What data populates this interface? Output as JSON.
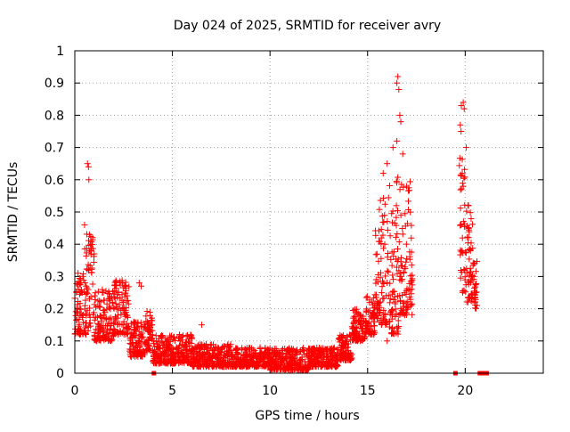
{
  "chart_data": {
    "type": "scatter",
    "title": "Day 024 of 2025, SRMTID for receiver avry",
    "xlabel": "GPS time / hours",
    "ylabel": "SRMTID / TECUs",
    "xlim": [
      0,
      24
    ],
    "ylim": [
      0,
      1
    ],
    "xticks": [
      0,
      5,
      10,
      15,
      20
    ],
    "yticks": [
      0,
      0.1,
      0.2,
      0.3,
      0.4,
      0.5,
      0.6,
      0.7,
      0.8,
      0.9,
      1
    ],
    "xtick_labels": [
      "0",
      "5",
      "10",
      "15",
      "20"
    ],
    "ytick_labels": [
      "0",
      "0.1",
      "0.2",
      "0.3",
      "0.4",
      "0.5",
      "0.6",
      "0.7",
      "0.8",
      "0.9",
      "1"
    ],
    "grid": true,
    "marker": "plus",
    "color": "#ff0000",
    "series": [
      {
        "name": "SRMTID",
        "segments": [
          {
            "x0": 0.0,
            "x1": 0.5,
            "y_min": 0.12,
            "y_max": 0.32
          },
          {
            "x0": 0.5,
            "x1": 1.0,
            "y_min": 0.12,
            "y_max": 0.45
          },
          {
            "x0": 1.0,
            "x1": 2.0,
            "y_min": 0.1,
            "y_max": 0.26
          },
          {
            "x0": 2.0,
            "x1": 2.8,
            "y_min": 0.12,
            "y_max": 0.29
          },
          {
            "x0": 2.8,
            "x1": 3.6,
            "y_min": 0.05,
            "y_max": 0.16
          },
          {
            "x0": 3.6,
            "x1": 4.0,
            "y_min": 0.07,
            "y_max": 0.2
          },
          {
            "x0": 4.0,
            "x1": 6.0,
            "y_min": 0.03,
            "y_max": 0.12
          },
          {
            "x0": 6.0,
            "x1": 8.0,
            "y_min": 0.02,
            "y_max": 0.09
          },
          {
            "x0": 8.0,
            "x1": 10.0,
            "y_min": 0.02,
            "y_max": 0.08
          },
          {
            "x0": 10.0,
            "x1": 12.0,
            "y_min": 0.01,
            "y_max": 0.08
          },
          {
            "x0": 12.0,
            "x1": 13.5,
            "y_min": 0.02,
            "y_max": 0.08
          },
          {
            "x0": 13.5,
            "x1": 14.2,
            "y_min": 0.04,
            "y_max": 0.12
          },
          {
            "x0": 14.2,
            "x1": 14.9,
            "y_min": 0.1,
            "y_max": 0.2
          },
          {
            "x0": 14.9,
            "x1": 15.4,
            "y_min": 0.12,
            "y_max": 0.25
          },
          {
            "x0": 15.4,
            "x1": 16.0,
            "y_min": 0.15,
            "y_max": 0.55
          },
          {
            "x0": 16.0,
            "x1": 16.6,
            "y_min": 0.12,
            "y_max": 0.62
          },
          {
            "x0": 16.6,
            "x1": 17.3,
            "y_min": 0.18,
            "y_max": 0.6
          },
          {
            "x0": 19.7,
            "x1": 20.0,
            "y_min": 0.25,
            "y_max": 0.75
          },
          {
            "x0": 20.0,
            "x1": 20.4,
            "y_min": 0.22,
            "y_max": 0.55
          },
          {
            "x0": 20.4,
            "x1": 20.6,
            "y_min": 0.2,
            "y_max": 0.35
          }
        ],
        "highlights": [
          {
            "x": 0.65,
            "y": 0.65
          },
          {
            "x": 0.7,
            "y": 0.64
          },
          {
            "x": 0.72,
            "y": 0.6
          },
          {
            "x": 0.5,
            "y": 0.46
          },
          {
            "x": 0.75,
            "y": 0.43
          },
          {
            "x": 0.8,
            "y": 0.4
          },
          {
            "x": 3.3,
            "y": 0.28
          },
          {
            "x": 3.4,
            "y": 0.27
          },
          {
            "x": 6.5,
            "y": 0.15
          },
          {
            "x": 16.5,
            "y": 0.9
          },
          {
            "x": 16.55,
            "y": 0.92
          },
          {
            "x": 16.6,
            "y": 0.88
          },
          {
            "x": 16.65,
            "y": 0.8
          },
          {
            "x": 16.7,
            "y": 0.78
          },
          {
            "x": 16.5,
            "y": 0.72
          },
          {
            "x": 16.3,
            "y": 0.7
          },
          {
            "x": 16.8,
            "y": 0.68
          },
          {
            "x": 15.8,
            "y": 0.62
          },
          {
            "x": 16.0,
            "y": 0.65
          },
          {
            "x": 17.0,
            "y": 0.58
          },
          {
            "x": 19.8,
            "y": 0.83
          },
          {
            "x": 19.9,
            "y": 0.84
          },
          {
            "x": 19.95,
            "y": 0.82
          },
          {
            "x": 19.75,
            "y": 0.77
          },
          {
            "x": 20.05,
            "y": 0.7
          },
          {
            "x": 19.85,
            "y": 0.62
          },
          {
            "x": 16.0,
            "y": 0.1
          },
          {
            "x": 16.9,
            "y": 0.18
          },
          {
            "x": 20.6,
            "y": 0.21
          }
        ],
        "zero_markers": [
          4.05,
          19.5,
          20.75,
          20.85,
          20.95,
          21.1
        ]
      }
    ]
  }
}
